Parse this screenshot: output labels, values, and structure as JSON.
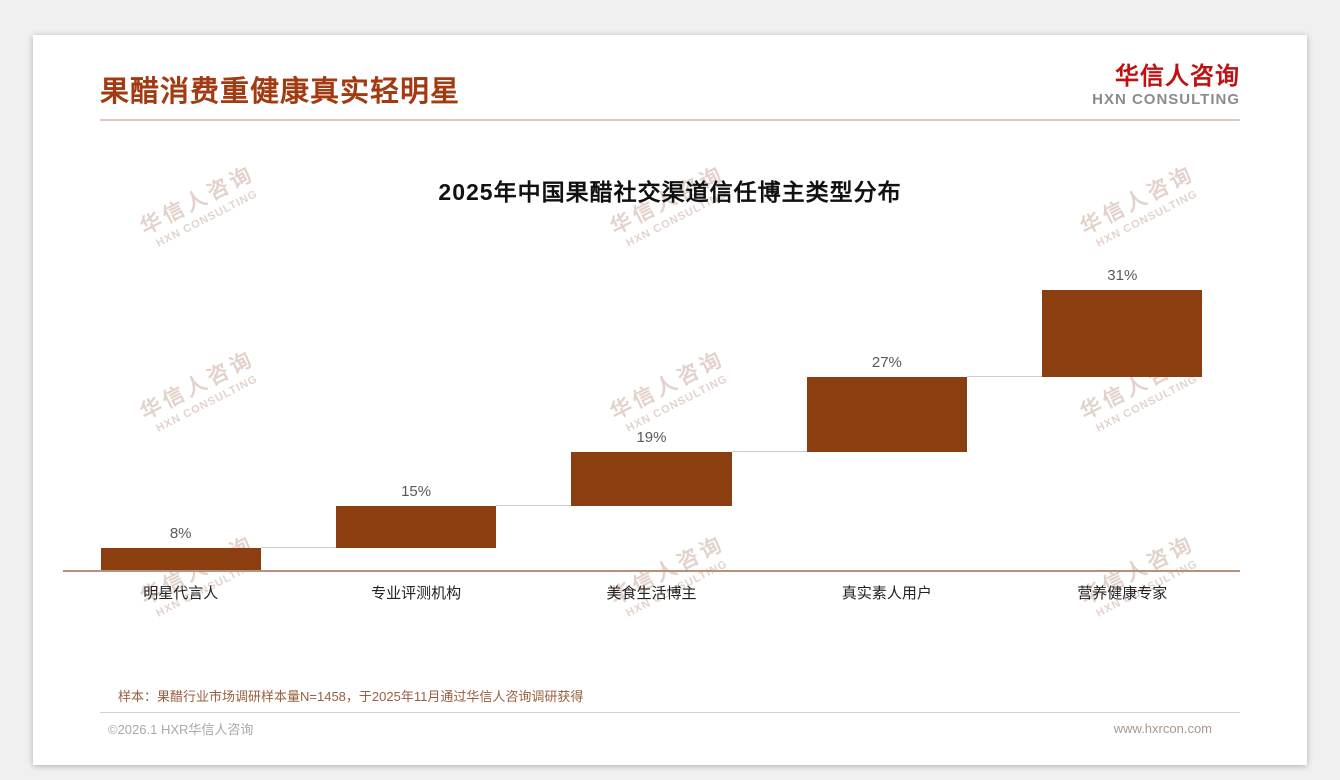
{
  "page": {
    "title": "果醋消费重健康真实轻明星",
    "logo": {
      "cn": "华信人咨询",
      "en": "HXN CONSULTING"
    },
    "watermark": {
      "cn": "华信人咨询",
      "en": "HXN CONSULTING"
    },
    "footnote": "样本：果醋行业市场调研样本量N=1458，于2025年11月通过华信人咨询调研获得",
    "footer_left": "©2026.1 HXR华信人咨询",
    "footer_right": "www.hxrcon.com"
  },
  "colors": {
    "title_brown": "#a23b12",
    "bar_brown": "#8b3e0f",
    "logo_red": "#c01010",
    "axis_line": "#b2937f",
    "footnote_brown": "#9a5e3f"
  },
  "chart_data": {
    "type": "bar",
    "subtype": "waterfall",
    "title": "2025年中国果醋社交渠道信任博主类型分布",
    "categories": [
      "明星代言人",
      "专业评测机构",
      "美食生活博主",
      "真实素人用户",
      "营养健康专家"
    ],
    "values": [
      8,
      15,
      19,
      27,
      31
    ],
    "value_labels": [
      "8%",
      "15%",
      "19%",
      "27%",
      "31%"
    ],
    "cumulative_start": [
      0,
      8,
      23,
      42,
      69
    ],
    "ylim": [
      0,
      100
    ],
    "unit": "%",
    "bar_color": "#8b3e0f",
    "grid": false,
    "legend": false
  }
}
